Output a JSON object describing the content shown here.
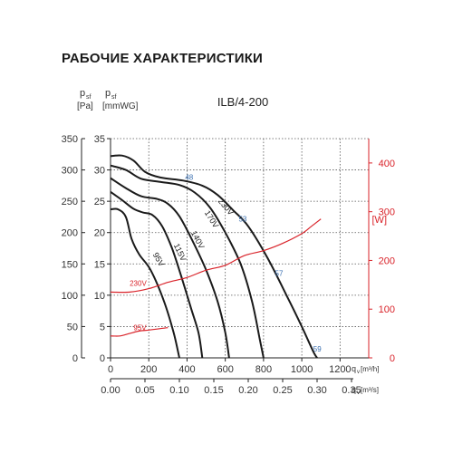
{
  "title": "РАБОЧИЕ ХАРАКТЕРИСТИКИ",
  "chart_data": {
    "type": "line",
    "model": "ILB/4-200",
    "y_left_pa": {
      "label_main": "p",
      "label_sub": "sf",
      "unit": "[Pa]",
      "range": [
        0,
        350
      ],
      "ticks": [
        0,
        50,
        100,
        150,
        200,
        250,
        300,
        350
      ]
    },
    "y_left_mmwg": {
      "label_main": "p",
      "label_sub": "sf",
      "unit": "[mmWG]",
      "range": [
        0,
        35
      ],
      "ticks": [
        0,
        5,
        10,
        15,
        20,
        25,
        30,
        35
      ]
    },
    "y_right_w": {
      "unit": "[W]",
      "range": [
        0,
        450
      ],
      "ticks": [
        0,
        100,
        200,
        300,
        400
      ]
    },
    "x_m3h": {
      "label": "q",
      "sub": "v",
      "unit": "[m³/h]",
      "range": [
        0,
        1350
      ],
      "ticks": [
        0,
        200,
        400,
        600,
        800,
        1000,
        1200
      ]
    },
    "x_m3s": {
      "label": "q",
      "sub": "v",
      "unit": "[m³/s]",
      "ticks": [
        0.0,
        0.05,
        0.1,
        0.15,
        0.2,
        0.25,
        0.3,
        0.35
      ],
      "tick_labels": [
        "0.00",
        "0.05",
        "0.10",
        "0.15",
        "0.20",
        "0.25",
        "0.30",
        "0.35"
      ]
    },
    "grid": true,
    "pressure_series": [
      {
        "name": "230V",
        "points": [
          [
            0,
            322
          ],
          [
            60,
            323
          ],
          [
            120,
            315
          ],
          [
            180,
            297
          ],
          [
            260,
            288
          ],
          [
            380,
            283
          ],
          [
            480,
            275
          ],
          [
            560,
            260
          ],
          [
            640,
            236
          ],
          [
            720,
            210
          ],
          [
            820,
            160
          ],
          [
            920,
            100
          ],
          [
            1000,
            50
          ],
          [
            1060,
            10
          ],
          [
            1080,
            0
          ]
        ]
      },
      {
        "name": "170V",
        "points": [
          [
            0,
            307
          ],
          [
            80,
            300
          ],
          [
            160,
            286
          ],
          [
            260,
            281
          ],
          [
            360,
            276
          ],
          [
            440,
            264
          ],
          [
            520,
            240
          ],
          [
            600,
            200
          ],
          [
            680,
            150
          ],
          [
            740,
            90
          ],
          [
            780,
            30
          ],
          [
            800,
            0
          ]
        ]
      },
      {
        "name": "140V",
        "points": [
          [
            0,
            287
          ],
          [
            80,
            271
          ],
          [
            160,
            258
          ],
          [
            240,
            254
          ],
          [
            300,
            246
          ],
          [
            360,
            226
          ],
          [
            430,
            186
          ],
          [
            500,
            140
          ],
          [
            560,
            90
          ],
          [
            600,
            40
          ],
          [
            620,
            0
          ]
        ]
      },
      {
        "name": "115V",
        "points": [
          [
            0,
            265
          ],
          [
            60,
            252
          ],
          [
            120,
            238
          ],
          [
            170,
            232
          ],
          [
            220,
            228
          ],
          [
            270,
            210
          ],
          [
            320,
            176
          ],
          [
            370,
            130
          ],
          [
            420,
            80
          ],
          [
            460,
            40
          ],
          [
            480,
            0
          ]
        ]
      },
      {
        "name": "95V",
        "points": [
          [
            0,
            237
          ],
          [
            40,
            237
          ],
          [
            80,
            225
          ],
          [
            110,
            190
          ],
          [
            150,
            165
          ],
          [
            210,
            140
          ],
          [
            280,
            90
          ],
          [
            330,
            40
          ],
          [
            360,
            0
          ]
        ]
      }
    ],
    "power_series": [
      {
        "name": "230V",
        "points": [
          [
            0,
            135
          ],
          [
            100,
            135
          ],
          [
            200,
            142
          ],
          [
            300,
            155
          ],
          [
            400,
            165
          ],
          [
            500,
            180
          ],
          [
            600,
            190
          ],
          [
            700,
            210
          ],
          [
            800,
            220
          ],
          [
            900,
            235
          ],
          [
            1000,
            255
          ],
          [
            1050,
            270
          ],
          [
            1100,
            285
          ]
        ]
      },
      {
        "name": "95V",
        "points": [
          [
            0,
            45
          ],
          [
            50,
            45
          ],
          [
            100,
            50
          ],
          [
            150,
            55
          ],
          [
            200,
            57
          ],
          [
            260,
            60
          ],
          [
            300,
            62
          ]
        ]
      }
    ],
    "efficiency_labels": [
      {
        "text": "48",
        "x": 390,
        "y": 284
      },
      {
        "text": "53",
        "x": 670,
        "y": 218
      },
      {
        "text": "57",
        "x": 860,
        "y": 131
      },
      {
        "text": "59",
        "x": 1060,
        "y": 10
      }
    ],
    "speed_labels": [
      {
        "text": "230V",
        "x": 560,
        "y": 250,
        "angle": -50
      },
      {
        "text": "170V",
        "x": 490,
        "y": 232,
        "angle": -58
      },
      {
        "text": "140V",
        "x": 420,
        "y": 200,
        "angle": -62
      },
      {
        "text": "115V",
        "x": 330,
        "y": 180,
        "angle": -65
      },
      {
        "text": "95V",
        "x": 220,
        "y": 165,
        "angle": -60
      }
    ],
    "power_labels": [
      {
        "text": "230V",
        "x": 100,
        "y": 148
      },
      {
        "text": "95V",
        "x": 120,
        "y": 57
      }
    ],
    "colors": {
      "pressure": "#1a1a1a",
      "power": "#d9232a",
      "efficiency": "#3a6fb0",
      "grid": "#555555",
      "axis_text": "#333333"
    }
  }
}
